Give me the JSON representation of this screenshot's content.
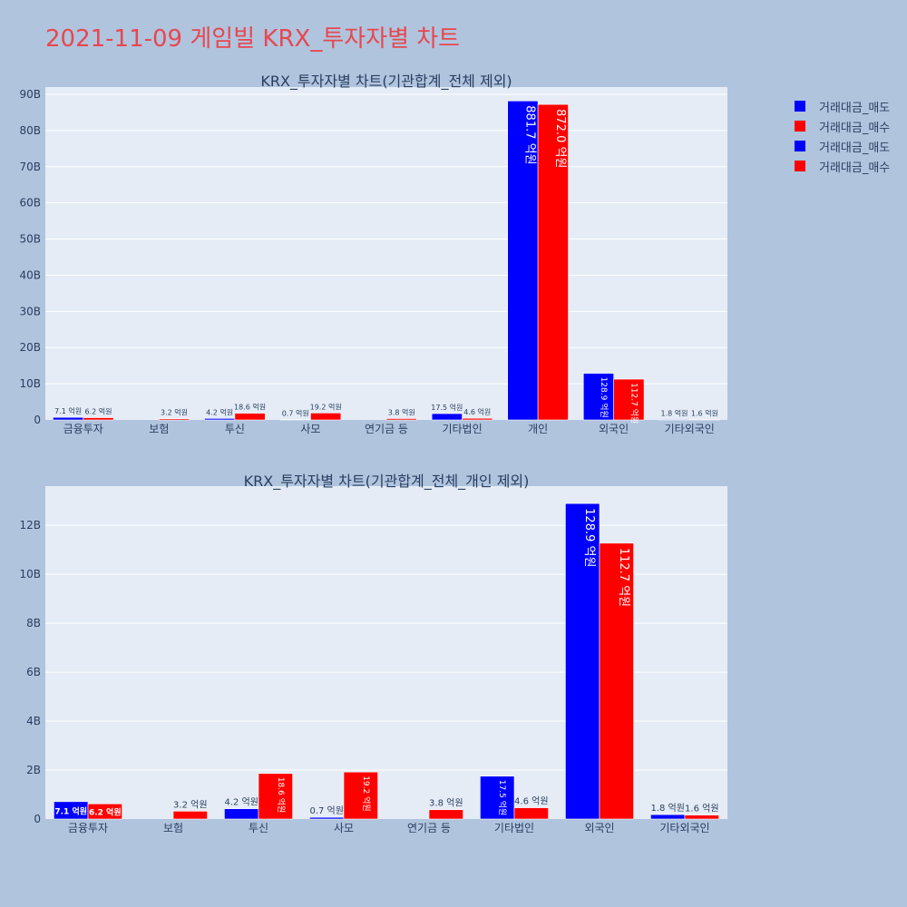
{
  "page_title": "2021-11-09 게임빌 KRX_투자자별 차트",
  "colors": {
    "sell": "#0000ff",
    "buy": "#ff0000",
    "plot_bg": "#e5ecf6",
    "page_bg": "#b0c4de",
    "title": "#e8474f",
    "text": "#2a3f5f"
  },
  "legend": [
    {
      "label": "거래대금_매도",
      "color": "#0000ff"
    },
    {
      "label": "거래대금_매수",
      "color": "#ff0000"
    },
    {
      "label": "거래대금_매도",
      "color": "#0000ff"
    },
    {
      "label": "거래대금_매수",
      "color": "#ff0000"
    }
  ],
  "chart_data": [
    {
      "type": "bar",
      "title": "KRX_투자자별 차트(기관합계_전체 제외)",
      "categories": [
        "금융투자",
        "보험",
        "투신",
        "사모",
        "연기금 등",
        "기타법인",
        "개인",
        "외국인",
        "기타외국인"
      ],
      "series": [
        {
          "name": "거래대금_매도",
          "color": "#0000ff",
          "values": [
            0.71,
            0,
            0.42,
            0.07,
            0,
            1.75,
            88.17,
            12.89,
            0.18
          ],
          "labels": [
            "7.1 억원",
            "",
            "4.2 억원",
            "0.7 억원",
            "",
            "17.5 억원",
            "881.7 억원",
            "128.9 억원",
            "1.8 억원"
          ]
        },
        {
          "name": "거래대금_매수",
          "color": "#ff0000",
          "values": [
            0.62,
            0.32,
            1.86,
            1.92,
            0.38,
            0.46,
            87.2,
            11.27,
            0.16
          ],
          "labels": [
            "6.2 억원",
            "3.2 억원",
            "18.6 억원",
            "19.2 억원",
            "3.8 억원",
            "4.6 억원",
            "872.0 억원",
            "112.7 억원",
            "1.6 억원"
          ]
        }
      ],
      "ylim": [
        0,
        92
      ],
      "yticks": [
        0,
        10,
        20,
        30,
        40,
        50,
        60,
        70,
        80,
        90
      ],
      "ytick_labels": [
        "0",
        "10B",
        "20B",
        "30B",
        "40B",
        "50B",
        "60B",
        "70B",
        "80B",
        "90B"
      ],
      "grid": true
    },
    {
      "type": "bar",
      "title": "KRX_투자자별 차트(기관합계_전체_개인 제외)",
      "categories": [
        "금융투자",
        "보험",
        "투신",
        "사모",
        "연기금 등",
        "기타법인",
        "외국인",
        "기타외국인"
      ],
      "series": [
        {
          "name": "거래대금_매도",
          "color": "#0000ff",
          "values": [
            0.71,
            0,
            0.42,
            0.07,
            0,
            1.75,
            12.89,
            0.18
          ],
          "labels": [
            "7.1 억원",
            "",
            "4.2 억원",
            "0.7 억원",
            "",
            "17.5 억원",
            "128.9 억원",
            "1.8 억원"
          ]
        },
        {
          "name": "거래대금_매수",
          "color": "#ff0000",
          "values": [
            0.62,
            0.32,
            1.86,
            1.92,
            0.38,
            0.46,
            11.27,
            0.16
          ],
          "labels": [
            "6.2 억원",
            "3.2 억원",
            "18.6 억원",
            "19.2 억원",
            "3.8 억원",
            "4.6 억원",
            "112.7 억원",
            "1.6 억원"
          ]
        }
      ],
      "ylim": [
        0,
        13.6
      ],
      "yticks": [
        0,
        2,
        4,
        6,
        8,
        10,
        12
      ],
      "ytick_labels": [
        "0",
        "2B",
        "4B",
        "6B",
        "8B",
        "10B",
        "12B"
      ],
      "grid": true
    }
  ]
}
